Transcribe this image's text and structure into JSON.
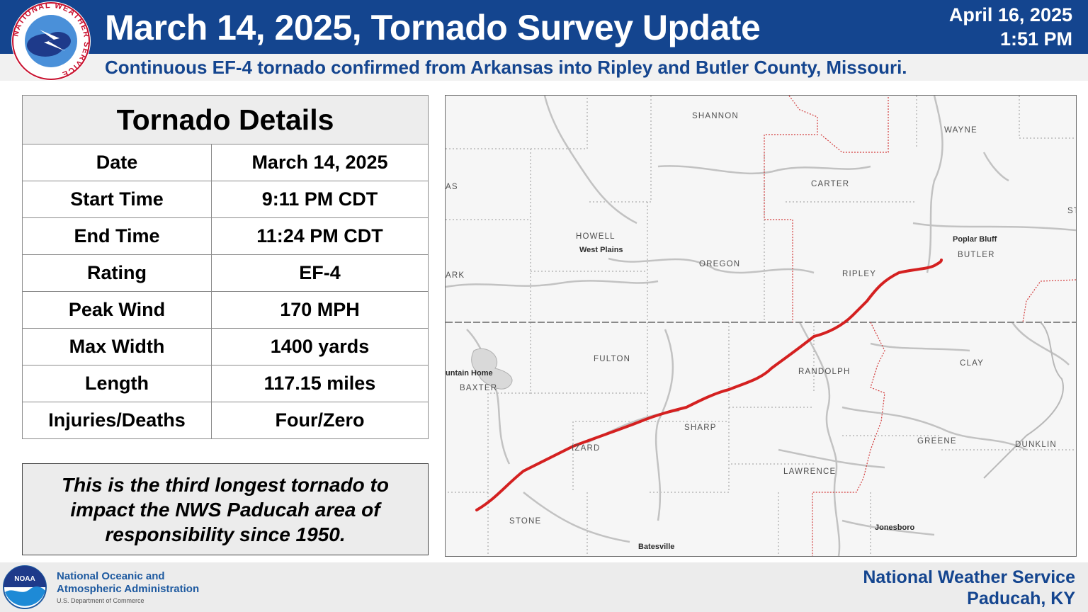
{
  "header": {
    "title": "March 14, 2025, Tornado Survey Update",
    "date": "April 16, 2025",
    "time": "1:51 PM",
    "subtitle": "Continuous EF-4 tornado confirmed from Arkansas into Ripley and Butler County, Missouri.",
    "logo_ring_text": "NATIONAL WEATHER SERVICE"
  },
  "details": {
    "heading": "Tornado Details",
    "rows": [
      {
        "label": "Date",
        "value": "March 14, 2025"
      },
      {
        "label": "Start Time",
        "value": "9:11 PM CDT"
      },
      {
        "label": "End Time",
        "value": "11:24 PM CDT"
      },
      {
        "label": "Rating",
        "value": "EF-4"
      },
      {
        "label": "Peak Wind",
        "value": "170 MPH"
      },
      {
        "label": "Max Width",
        "value": "1400 yards"
      },
      {
        "label": "Length",
        "value": "117.15 miles"
      },
      {
        "label": "Injuries/Deaths",
        "value": "Four/Zero"
      }
    ]
  },
  "note": "This is the third longest tornado to impact the NWS Paducah area of responsibility since 1950.",
  "map": {
    "counties": [
      "SHANNON",
      "WAYNE",
      "CARTER",
      "HOWELL",
      "OREGON",
      "RIPLEY",
      "BUTLER",
      "FULTON",
      "RANDOLPH",
      "CLAY",
      "BAXTER",
      "SHARP",
      "IZARD",
      "GREENE",
      "DUNKLIN",
      "LAWRENCE",
      "STONE",
      "AS",
      "ARK",
      "ST"
    ],
    "cities": [
      "West Plains",
      "Poplar Bluff",
      "Jonesboro",
      "Batesville",
      "untain Home"
    ],
    "track_color": "#d42020"
  },
  "footer": {
    "noaa_line1": "National Oceanic and",
    "noaa_line2": "Atmospheric Administration",
    "noaa_line3": "U.S. Department of Commerce",
    "noaa_badge": "NOAA",
    "nws_line1": "National Weather Service",
    "nws_line2": "Paducah, KY"
  }
}
